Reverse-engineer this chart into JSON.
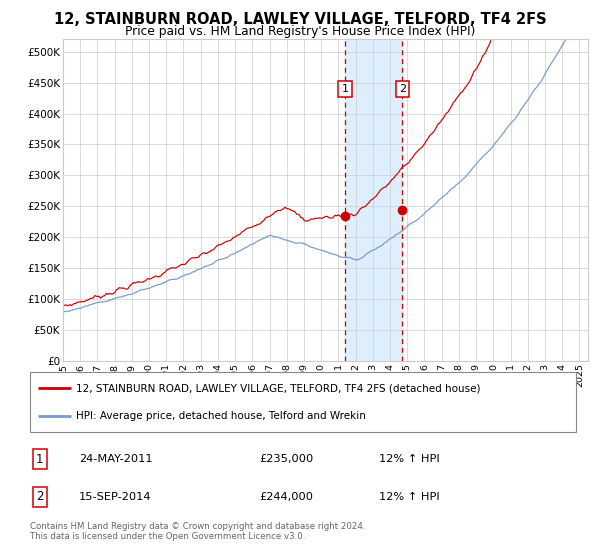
{
  "title": "12, STAINBURN ROAD, LAWLEY VILLAGE, TELFORD, TF4 2FS",
  "subtitle": "Price paid vs. HM Land Registry's House Price Index (HPI)",
  "legend_line1": "12, STAINBURN ROAD, LAWLEY VILLAGE, TELFORD, TF4 2FS (detached house)",
  "legend_line2": "HPI: Average price, detached house, Telford and Wrekin",
  "event1_date": "24-MAY-2011",
  "event1_price": 235000,
  "event1_hpi_pct": "12%",
  "event2_date": "15-SEP-2014",
  "event2_price": 244000,
  "event2_hpi_pct": "12%",
  "footer": "Contains HM Land Registry data © Crown copyright and database right 2024.\nThis data is licensed under the Open Government Licence v3.0.",
  "red_line_color": "#cc0000",
  "blue_line_color": "#7799cc",
  "background_color": "#ffffff",
  "grid_color": "#cccccc",
  "vspan_color": "#ddeeff",
  "event1_year": 2011.38,
  "event2_year": 2014.71,
  "ylim_min": 0,
  "ylim_max": 520000,
  "xlim_start": 1995.0,
  "xlim_end": 2025.5,
  "yticks": [
    0,
    50000,
    100000,
    150000,
    200000,
    250000,
    300000,
    350000,
    400000,
    450000,
    500000
  ],
  "xticks": [
    1995,
    1996,
    1997,
    1998,
    1999,
    2000,
    2001,
    2002,
    2003,
    2004,
    2005,
    2006,
    2007,
    2008,
    2009,
    2010,
    2011,
    2012,
    2013,
    2014,
    2015,
    2016,
    2017,
    2018,
    2019,
    2020,
    2021,
    2022,
    2023,
    2024,
    2025
  ]
}
